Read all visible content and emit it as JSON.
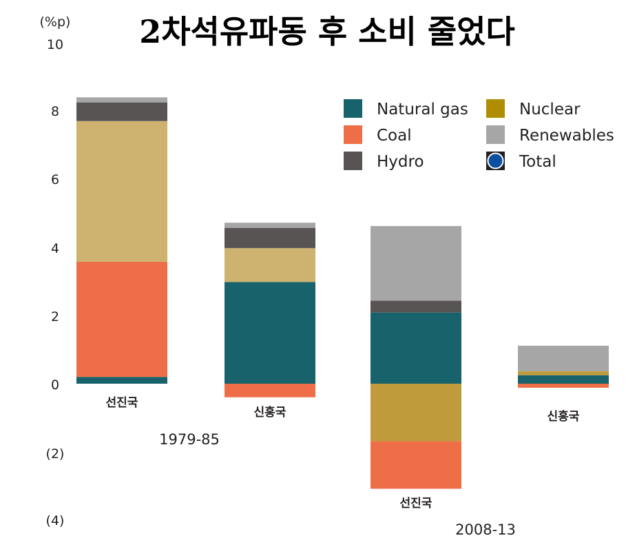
{
  "chart_data": {
    "type": "bar",
    "stacked": true,
    "title": "2차석유파동 후 소비 줄었다",
    "unit": "(%p)",
    "y_ticks": [
      {
        "value": 10,
        "label": "10"
      },
      {
        "value": 8,
        "label": "8"
      },
      {
        "value": 6,
        "label": "6"
      },
      {
        "value": 4,
        "label": "4"
      },
      {
        "value": 2,
        "label": "2"
      },
      {
        "value": 0,
        "label": "0"
      },
      {
        "value": -2,
        "label": "(2)"
      },
      {
        "value": -4,
        "label": "(4)"
      }
    ],
    "ylim": [
      -4,
      10
    ],
    "categories": [
      "선진국",
      "신흥국",
      "선진국",
      "신흥국"
    ],
    "periods": [
      {
        "label": "1979-85",
        "category_indices": [
          0,
          1
        ]
      },
      {
        "label": "2008-13",
        "category_indices": [
          2,
          3
        ]
      }
    ],
    "series": [
      {
        "name": "Natural gas",
        "color": "#17626b",
        "values": [
          0.2,
          3.0,
          2.1,
          0.25
        ]
      },
      {
        "name": "Coal",
        "color": "#ee6e48",
        "values": [
          3.4,
          -0.4,
          -1.4,
          -0.12
        ]
      },
      {
        "name": "Hydro",
        "color": "#595454",
        "values": [
          0.55,
          0.6,
          0.35,
          0.0
        ]
      },
      {
        "name": "Nuclear",
        "color": "#b08d00",
        "values": [
          4.15,
          1.0,
          -1.7,
          0.12
        ]
      },
      {
        "name": "Renewables",
        "color": "#a7a6a6",
        "values": [
          0.15,
          0.15,
          2.2,
          0.75
        ]
      },
      {
        "name": "Total",
        "color": "#0b4fa0",
        "values": [
          null,
          null,
          null,
          null
        ]
      }
    ],
    "bar_segment_colors": {
      "Nuclear": [
        "#cdb36f",
        "#cdb36f",
        "#bf9b3c",
        "#bf9b3c"
      ]
    },
    "legend": {
      "placement": "top-right",
      "columns": 2
    },
    "grid": false
  }
}
